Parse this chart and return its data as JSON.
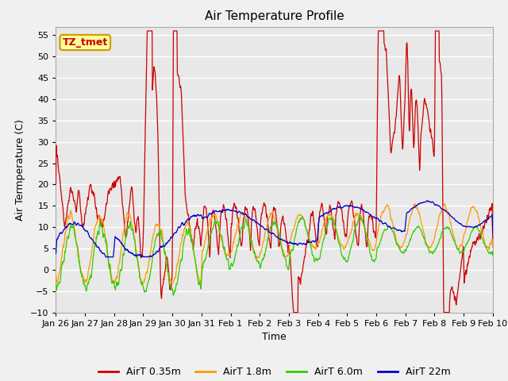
{
  "title": "Air Temperature Profile",
  "xlabel": "Time",
  "ylabel": "Air Termperature (C)",
  "ylim": [
    -10,
    57
  ],
  "yticks": [
    -10,
    -5,
    0,
    5,
    10,
    15,
    20,
    25,
    30,
    35,
    40,
    45,
    50,
    55
  ],
  "xtick_labels": [
    "Jan 26",
    "Jan 27",
    "Jan 28",
    "Jan 29",
    "Jan 30",
    "Jan 31",
    "Feb 1",
    "Feb 2",
    "Feb 3",
    "Feb 4",
    "Feb 5",
    "Feb 6",
    "Feb 7",
    "Feb 8",
    "Feb 9",
    "Feb 10"
  ],
  "fig_bg_color": "#f0f0f0",
  "plot_bg_color": "#e8e8e8",
  "grid_color": "#ffffff",
  "line_colors": {
    "red": "#cc0000",
    "orange": "#ff9900",
    "green": "#33cc00",
    "blue": "#0000cc"
  },
  "legend_labels": [
    "AirT 0.35m",
    "AirT 1.8m",
    "AirT 6.0m",
    "AirT 22m"
  ],
  "annotation_text": "TZ_tmet",
  "annotation_color": "#cc0000",
  "annotation_bg": "#ffff99",
  "annotation_border": "#cc9900",
  "title_fontsize": 11,
  "axis_label_fontsize": 9,
  "tick_fontsize": 8
}
